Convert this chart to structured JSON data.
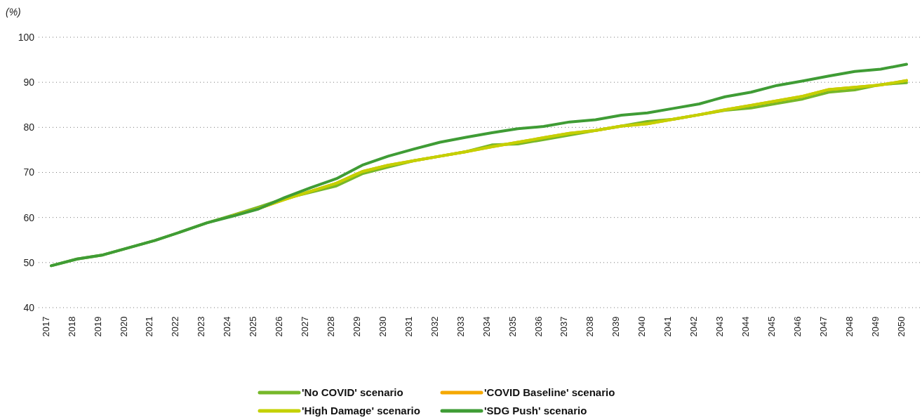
{
  "chart_data": {
    "type": "line",
    "ylabel": "(%)",
    "categories": [
      "2017",
      "2018",
      "2019",
      "2020",
      "2021",
      "2022",
      "2023",
      "2024",
      "2025",
      "2026",
      "2027",
      "2028",
      "2029",
      "2030",
      "2031",
      "2032",
      "2033",
      "2034",
      "2035",
      "2036",
      "2037",
      "2038",
      "2039",
      "2040",
      "2041",
      "2042",
      "2043",
      "2044",
      "2045",
      "2046",
      "2047",
      "2048",
      "2049",
      "2050"
    ],
    "ylim": [
      40,
      100
    ],
    "yticks": [
      40,
      50,
      60,
      70,
      80,
      90,
      100
    ],
    "grid": "y",
    "legend": "bottom",
    "line_style": "solid",
    "marker": "none",
    "series": [
      {
        "name": "'No COVID' scenario",
        "color": "#76b82a",
        "values": [
          49.3,
          50.8,
          51.7,
          53.3,
          54.9,
          56.8,
          58.8,
          60.5,
          62.3,
          64.2,
          65.6,
          67.0,
          69.7,
          71.2,
          72.6,
          73.6,
          74.6,
          76.1,
          76.3,
          77.3,
          78.3,
          79.3,
          80.3,
          81.3,
          81.8,
          82.8,
          83.8,
          84.3,
          85.3,
          86.3,
          87.8,
          88.3,
          89.5,
          89.9
        ]
      },
      {
        "name": "'COVID Baseline' scenario",
        "color": "#f5a800",
        "values": [
          null,
          null,
          null,
          null,
          null,
          null,
          null,
          60.4,
          62.0,
          64.0,
          65.8,
          67.6,
          70.2,
          71.6,
          72.6,
          73.6,
          74.6,
          75.7,
          76.7,
          77.7,
          78.7,
          79.3,
          80.3,
          80.8,
          81.8,
          82.8,
          83.9,
          84.9,
          85.9,
          86.9,
          88.4,
          88.9,
          89.4,
          90.4
        ]
      },
      {
        "name": "'High Damage' scenario",
        "color": "#c4d100",
        "values": [
          null,
          null,
          null,
          null,
          null,
          null,
          null,
          60.4,
          62.0,
          64.0,
          65.8,
          67.6,
          70.2,
          71.6,
          72.6,
          73.6,
          74.6,
          75.7,
          76.7,
          77.7,
          78.7,
          79.3,
          80.3,
          80.8,
          81.8,
          82.8,
          83.9,
          84.9,
          85.9,
          86.9,
          88.4,
          88.9,
          89.4,
          90.4
        ]
      },
      {
        "name": "'SDG Push' scenario",
        "color": "#3f9c35",
        "values": [
          49.3,
          50.8,
          51.7,
          53.3,
          54.9,
          56.8,
          58.8,
          60.3,
          61.9,
          64.4,
          66.6,
          68.6,
          71.6,
          73.6,
          75.2,
          76.7,
          77.8,
          78.8,
          79.7,
          80.2,
          81.2,
          81.7,
          82.7,
          83.2,
          84.2,
          85.2,
          86.8,
          87.8,
          89.3,
          90.3,
          91.4,
          92.4,
          92.9,
          94.0
        ]
      }
    ]
  }
}
